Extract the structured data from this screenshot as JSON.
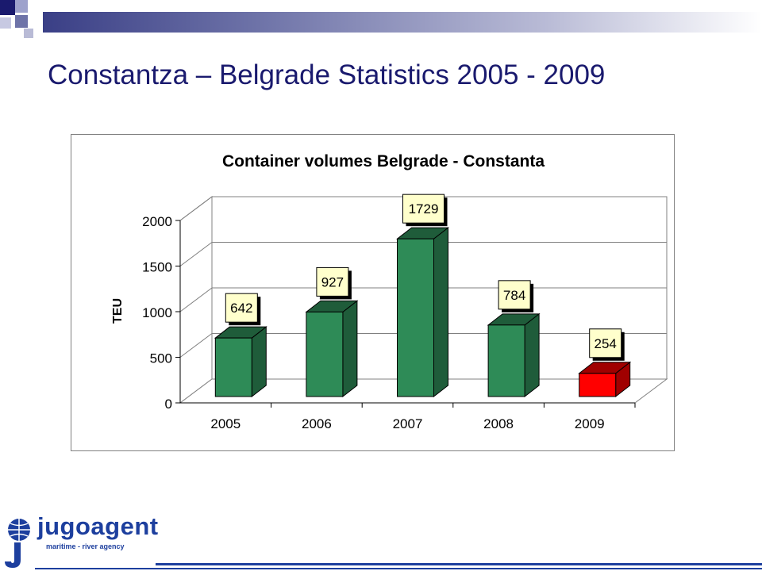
{
  "slide": {
    "title": "Constantza – Belgrade Statistics 2005 - 2009"
  },
  "colors": {
    "accent": "#1a1a6e",
    "bar_front": "#2e8b57",
    "bar_side": "#1f5c3a",
    "bar_highlight_front": "#ff0000",
    "bar_highlight_side": "#a00000",
    "label_fill": "#ffffcc"
  },
  "chart_data": {
    "type": "bar",
    "title": "Container volumes Belgrade - Constanta",
    "ylabel": "TEU",
    "xlabel": "",
    "categories": [
      "2005",
      "2006",
      "2007",
      "2008",
      "2009"
    ],
    "values": [
      642,
      927,
      1729,
      784,
      254
    ],
    "data_labels": [
      "642",
      "927",
      "1729",
      "784",
      "254"
    ],
    "ylim": [
      0,
      2000
    ],
    "yticks": [
      0,
      500,
      1000,
      1500,
      2000
    ],
    "ytick_labels": [
      "0",
      "500",
      "1000",
      "1500",
      "2000"
    ],
    "highlight_category": "2009",
    "grid": true,
    "legend": "none",
    "style": "3d-column"
  },
  "logo": {
    "wordmark": "jugoagent",
    "tagline": "maritime - river agency"
  }
}
